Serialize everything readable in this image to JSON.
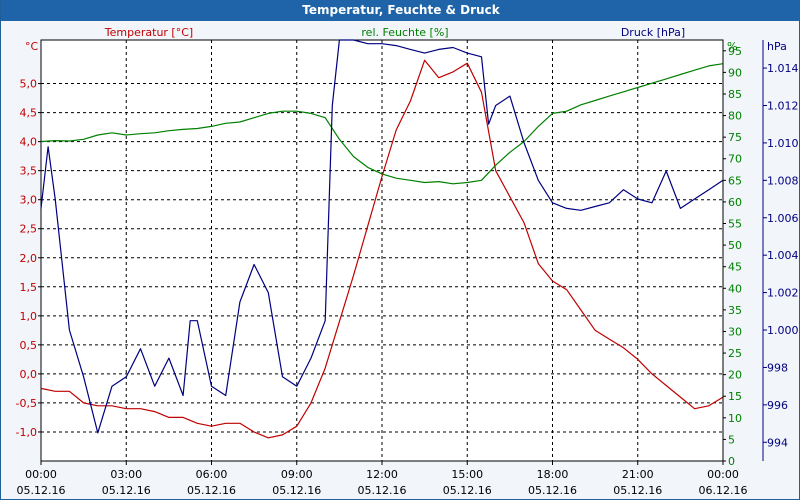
{
  "chart_data": {
    "type": "line",
    "title": "Temperatur, Feuchte & Druck",
    "x_ticks": [
      {
        "time": "00:00",
        "date": "05.12.16"
      },
      {
        "time": "03:00",
        "date": "05.12.16"
      },
      {
        "time": "06:00",
        "date": "05.12.16"
      },
      {
        "time": "09:00",
        "date": "05.12.16"
      },
      {
        "time": "12:00",
        "date": "05.12.16"
      },
      {
        "time": "15:00",
        "date": "05.12.16"
      },
      {
        "time": "18:00",
        "date": "05.12.16"
      },
      {
        "time": "21:00",
        "date": "05.12.16"
      },
      {
        "time": "00:00",
        "date": "06.12.16"
      }
    ],
    "x_range_hours": [
      0,
      24
    ],
    "grid": true,
    "axes": {
      "temperature": {
        "label": "Temperatur [°C]",
        "unit": "°C",
        "color": "#c00000",
        "range": [
          -1.5,
          5.75
        ],
        "ticks": [
          "-1,0",
          "-0,5",
          "0,0",
          "0,5",
          "1,0",
          "1,5",
          "2,0",
          "2,5",
          "3,0",
          "3,5",
          "4,0",
          "4,5",
          "5,0"
        ]
      },
      "humidity": {
        "label": "rel. Feuchte [%]",
        "unit": "%",
        "color": "#008000",
        "range": [
          0,
          97.5
        ],
        "ticks": [
          "0",
          "5",
          "10",
          "15",
          "20",
          "25",
          "30",
          "35",
          "40",
          "45",
          "50",
          "55",
          "60",
          "65",
          "70",
          "75",
          "80",
          "85",
          "90",
          "95"
        ]
      },
      "pressure": {
        "label": "Druck [hPa]",
        "unit": "hPa",
        "color": "#000080",
        "range": [
          993,
          1015.5
        ],
        "ticks": [
          "994",
          "996",
          "998",
          "1.000",
          "1.002",
          "1.004",
          "1.006",
          "1.008",
          "1.010",
          "1.012",
          "1.014"
        ]
      }
    },
    "series": [
      {
        "name": "Temperatur [°C]",
        "axis": "temperature",
        "color": "#c00000",
        "x": [
          0,
          0.5,
          1,
          1.5,
          2,
          2.5,
          3,
          3.5,
          4,
          4.5,
          5,
          5.5,
          6,
          6.5,
          7,
          7.5,
          8,
          8.5,
          9,
          9.5,
          10,
          10.5,
          11,
          11.5,
          12,
          12.5,
          13,
          13.5,
          14,
          14.5,
          15,
          15.5,
          16,
          16.5,
          17,
          17.5,
          18,
          18.5,
          19,
          19.5,
          20,
          20.5,
          21,
          21.5,
          22,
          22.5,
          23,
          23.5,
          24
        ],
        "values": [
          -0.25,
          -0.3,
          -0.3,
          -0.5,
          -0.55,
          -0.55,
          -0.6,
          -0.6,
          -0.65,
          -0.75,
          -0.75,
          -0.85,
          -0.9,
          -0.85,
          -0.85,
          -1.0,
          -1.1,
          -1.05,
          -0.9,
          -0.5,
          0.1,
          0.9,
          1.7,
          2.55,
          3.4,
          4.2,
          4.7,
          5.4,
          5.1,
          5.2,
          5.35,
          4.85,
          3.5,
          3.05,
          2.6,
          1.9,
          1.6,
          1.45,
          1.1,
          0.75,
          0.6,
          0.45,
          0.25,
          0.0,
          -0.2,
          -0.4,
          -0.6,
          -0.55,
          -0.4
        ]
      },
      {
        "name": "rel. Feuchte [%]",
        "axis": "humidity",
        "color": "#008000",
        "x": [
          0,
          0.5,
          1,
          1.5,
          2,
          2.5,
          3,
          3.5,
          4,
          4.5,
          5,
          5.5,
          6,
          6.5,
          7,
          7.5,
          8,
          8.5,
          9,
          9.5,
          10,
          10.5,
          11,
          11.5,
          12,
          12.5,
          13,
          13.5,
          14,
          14.5,
          15,
          15.5,
          16,
          16.5,
          17,
          17.5,
          18,
          18.5,
          19,
          19.5,
          20,
          20.5,
          21,
          21.5,
          22,
          22.5,
          23,
          23.5,
          24
        ],
        "values": [
          74,
          74.2,
          74.1,
          74.5,
          75.5,
          76,
          75.5,
          75.8,
          76,
          76.5,
          76.8,
          77,
          77.5,
          78.2,
          78.5,
          79.5,
          80.5,
          81,
          81,
          80.5,
          79.5,
          74.5,
          70.5,
          68,
          66.5,
          65.5,
          65,
          64.5,
          64.7,
          64.2,
          64.5,
          65,
          68.5,
          71.5,
          74,
          77.5,
          80.5,
          81,
          82.5,
          83.5,
          84.5,
          85.5,
          86.5,
          87.5,
          88.5,
          89.5,
          90.5,
          91.5,
          92
        ]
      },
      {
        "name": "Druck [hPa]",
        "axis": "pressure",
        "color": "#000080",
        "x": [
          0,
          0.25,
          0.5,
          1,
          1.5,
          2,
          2.5,
          3,
          3.5,
          4,
          4.5,
          5,
          5.25,
          5.5,
          6,
          6.5,
          7,
          7.5,
          8,
          8.5,
          9,
          9.5,
          10,
          10.25,
          10.5,
          11,
          11.5,
          12,
          12.5,
          13,
          13.5,
          14,
          14.5,
          15,
          15.5,
          15.75,
          16,
          16.5,
          17,
          17.5,
          18,
          18.5,
          19,
          19.5,
          20,
          20.5,
          21,
          21.5,
          22,
          22.5,
          23,
          23.5,
          24
        ],
        "values": [
          1006.5,
          1009.8,
          1007,
          1000,
          997.5,
          994.5,
          997,
          997.5,
          999,
          997,
          998.5,
          996.5,
          1000.5,
          1000.5,
          997,
          996.5,
          1001.5,
          1003.5,
          1002,
          997.5,
          997,
          998.5,
          1000.5,
          1012,
          1015.5,
          1015.5,
          1015.3,
          1015.3,
          1015.2,
          1015,
          1014.8,
          1015,
          1015.1,
          1014.8,
          1014.6,
          1011,
          1012,
          1012.5,
          1010,
          1008,
          1006.8,
          1006.5,
          1006.4,
          1006.6,
          1006.8,
          1007.5,
          1007,
          1006.8,
          1008.5,
          1006.5,
          1007,
          1007.5,
          1008
        ]
      }
    ]
  }
}
